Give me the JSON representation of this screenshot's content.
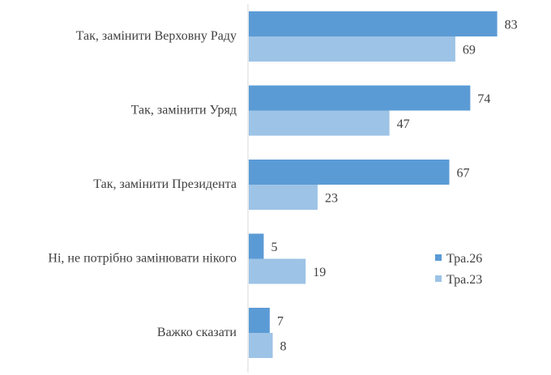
{
  "chart_data": {
    "type": "bar",
    "orientation": "horizontal",
    "categories": [
      "Так, замінити Верховну Раду",
      "Так, замінити Уряд",
      "Так, замінити Президента",
      "Ні, не потрібно замінювати нікого",
      "Важко сказати"
    ],
    "series": [
      {
        "name": "Тра.26",
        "color": "#5b9bd5",
        "values": [
          83,
          74,
          67,
          5,
          7
        ]
      },
      {
        "name": "Тра.23",
        "color": "#9dc3e6",
        "values": [
          69,
          47,
          23,
          19,
          8
        ]
      }
    ],
    "xlim": [
      0,
      85
    ],
    "grid": false,
    "legend_position": "right"
  }
}
